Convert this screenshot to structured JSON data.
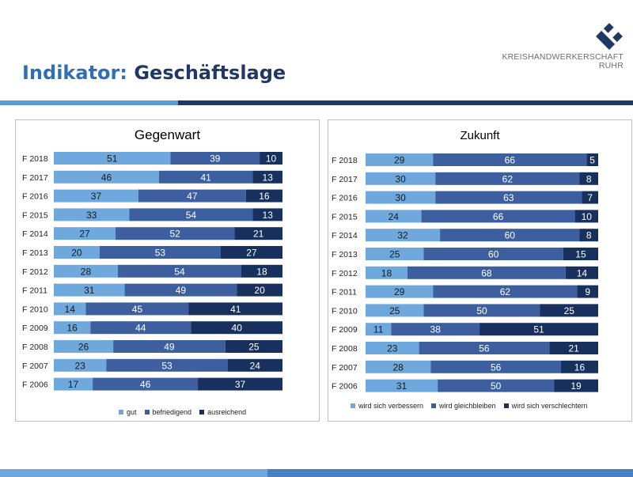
{
  "header": {
    "title_prefix": "Indikator:",
    "title_main": "Geschäftslage",
    "logo_line1": "KREISHANDWERKERSCHAFT",
    "logo_line2": "RUHR"
  },
  "colors": {
    "light": "#6fa8dc",
    "mid": "#3d5fa0",
    "dark": "#17305e",
    "title_accent": "#2f6fb5",
    "title_dark": "#1f3864",
    "bar_dark": "#1f3864",
    "bar_light": "#5b9bd5"
  },
  "chart_data": [
    {
      "type": "bar",
      "stacked": true,
      "orientation": "horizontal",
      "title": "Gegenwart",
      "categories": [
        "F 2018",
        "F 2017",
        "F 2016",
        "F 2015",
        "F 2014",
        "F 2013",
        "F 2012",
        "F 2011",
        "F 2010",
        "F 2009",
        "F 2008",
        "F 2007",
        "F 2006"
      ],
      "series": [
        {
          "name": "gut",
          "values": [
            51,
            46,
            37,
            33,
            27,
            20,
            28,
            31,
            14,
            16,
            26,
            23,
            17
          ]
        },
        {
          "name": "befriedigend",
          "values": [
            39,
            41,
            47,
            54,
            52,
            53,
            54,
            49,
            45,
            44,
            49,
            53,
            46
          ]
        },
        {
          "name": "ausreichend",
          "values": [
            10,
            13,
            16,
            13,
            21,
            27,
            18,
            20,
            41,
            40,
            25,
            24,
            37
          ]
        }
      ],
      "xlim": [
        0,
        100
      ],
      "legend": "bottom"
    },
    {
      "type": "bar",
      "stacked": true,
      "orientation": "horizontal",
      "title": "Zukunft",
      "categories": [
        "F 2018",
        "F 2017",
        "F 2016",
        "F 2015",
        "F 2014",
        "F 2013",
        "F 2012",
        "F 2011",
        "F 2010",
        "F 2009",
        "F 2008",
        "F 2007",
        "F 2006"
      ],
      "series": [
        {
          "name": "wird sich verbessern",
          "values": [
            29,
            30,
            30,
            24,
            32,
            25,
            18,
            29,
            25,
            11,
            23,
            28,
            31
          ]
        },
        {
          "name": "wird gleichbleiben",
          "values": [
            66,
            62,
            63,
            66,
            60,
            60,
            68,
            62,
            50,
            38,
            56,
            56,
            50
          ]
        },
        {
          "name": "wird sich verschlechtern",
          "values": [
            5,
            8,
            7,
            10,
            8,
            15,
            14,
            9,
            25,
            51,
            21,
            16,
            19
          ]
        }
      ],
      "xlim": [
        0,
        100
      ],
      "legend": "bottom"
    }
  ]
}
